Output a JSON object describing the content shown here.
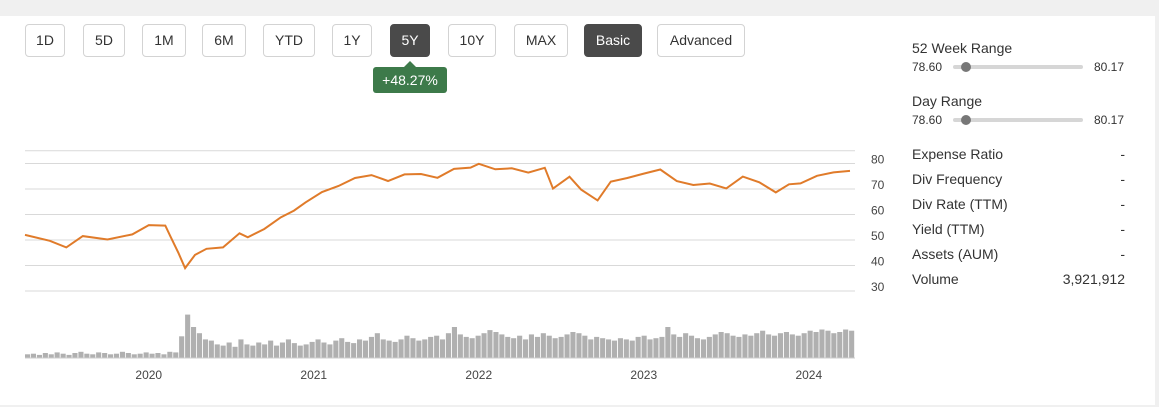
{
  "timeframe_buttons": [
    {
      "label": "1D",
      "active": false
    },
    {
      "label": "5D",
      "active": false
    },
    {
      "label": "1M",
      "active": false
    },
    {
      "label": "6M",
      "active": false
    },
    {
      "label": "YTD",
      "active": false
    },
    {
      "label": "1Y",
      "active": false
    },
    {
      "label": "5Y",
      "active": true
    },
    {
      "label": "10Y",
      "active": false
    },
    {
      "label": "MAX",
      "active": false
    }
  ],
  "mode_buttons": [
    {
      "label": "Basic",
      "active": true
    },
    {
      "label": "Advanced",
      "active": false
    }
  ],
  "change_badge": "+48.27%",
  "colors": {
    "price_line": "#e07b2a",
    "volume": "#b0b0b0",
    "active_button": "#4a4a4a",
    "badge": "#3d7a4a"
  },
  "chart_data": {
    "type": "line",
    "ylim": [
      30,
      85
    ],
    "y_ticks": [
      "80",
      "70",
      "60",
      "50",
      "40",
      "30"
    ],
    "x_ticks": [
      "2020",
      "2021",
      "2022",
      "2023",
      "2024"
    ],
    "series": [
      {
        "values": [
          [
            2019.25,
            52
          ],
          [
            2019.4,
            49
          ],
          [
            2019.5,
            48
          ],
          [
            2019.6,
            51
          ],
          [
            2019.75,
            50
          ],
          [
            2019.9,
            53
          ],
          [
            2020.0,
            55
          ],
          [
            2020.1,
            56
          ],
          [
            2020.13,
            52
          ],
          [
            2020.18,
            44
          ],
          [
            2020.22,
            39
          ],
          [
            2020.28,
            44
          ],
          [
            2020.35,
            46
          ],
          [
            2020.45,
            48
          ],
          [
            2020.55,
            52
          ],
          [
            2020.6,
            51
          ],
          [
            2020.7,
            55
          ],
          [
            2020.8,
            58
          ],
          [
            2020.88,
            62
          ],
          [
            2020.95,
            65
          ],
          [
            2021.05,
            68
          ],
          [
            2021.15,
            72
          ],
          [
            2021.25,
            74
          ],
          [
            2021.35,
            75
          ],
          [
            2021.45,
            74
          ],
          [
            2021.55,
            75
          ],
          [
            2021.65,
            76
          ],
          [
            2021.75,
            75
          ],
          [
            2021.85,
            77
          ],
          [
            2021.95,
            79
          ],
          [
            2022.0,
            80
          ],
          [
            2022.1,
            77
          ],
          [
            2022.2,
            79
          ],
          [
            2022.3,
            76
          ],
          [
            2022.4,
            78
          ],
          [
            2022.45,
            71
          ],
          [
            2022.55,
            74
          ],
          [
            2022.62,
            70
          ],
          [
            2022.72,
            66
          ],
          [
            2022.8,
            72
          ],
          [
            2022.9,
            75
          ],
          [
            2023.0,
            76
          ],
          [
            2023.1,
            77
          ],
          [
            2023.2,
            74
          ],
          [
            2023.3,
            71
          ],
          [
            2023.4,
            72
          ],
          [
            2023.5,
            71
          ],
          [
            2023.6,
            74
          ],
          [
            2023.7,
            73
          ],
          [
            2023.8,
            69
          ],
          [
            2023.88,
            71
          ],
          [
            2023.95,
            73
          ],
          [
            2024.05,
            75
          ],
          [
            2024.15,
            76
          ],
          [
            2024.25,
            78
          ]
        ]
      }
    ],
    "volume": [
      0.06,
      0.07,
      0.05,
      0.08,
      0.06,
      0.09,
      0.07,
      0.05,
      0.08,
      0.1,
      0.07,
      0.06,
      0.09,
      0.08,
      0.06,
      0.07,
      0.1,
      0.08,
      0.06,
      0.07,
      0.09,
      0.07,
      0.08,
      0.06,
      0.1,
      0.09,
      0.35,
      0.7,
      0.5,
      0.4,
      0.3,
      0.28,
      0.22,
      0.2,
      0.25,
      0.18,
      0.3,
      0.22,
      0.2,
      0.25,
      0.22,
      0.28,
      0.2,
      0.25,
      0.3,
      0.24,
      0.2,
      0.22,
      0.26,
      0.3,
      0.25,
      0.22,
      0.28,
      0.32,
      0.26,
      0.24,
      0.3,
      0.28,
      0.34,
      0.4,
      0.3,
      0.28,
      0.26,
      0.3,
      0.36,
      0.32,
      0.28,
      0.3,
      0.34,
      0.36,
      0.3,
      0.4,
      0.5,
      0.38,
      0.34,
      0.32,
      0.36,
      0.4,
      0.45,
      0.42,
      0.38,
      0.34,
      0.32,
      0.36,
      0.3,
      0.38,
      0.34,
      0.4,
      0.36,
      0.32,
      0.34,
      0.38,
      0.42,
      0.4,
      0.36,
      0.3,
      0.34,
      0.32,
      0.3,
      0.28,
      0.32,
      0.3,
      0.28,
      0.34,
      0.36,
      0.3,
      0.32,
      0.34,
      0.5,
      0.38,
      0.34,
      0.4,
      0.36,
      0.32,
      0.3,
      0.34,
      0.38,
      0.42,
      0.4,
      0.36,
      0.34,
      0.38,
      0.36,
      0.4,
      0.44,
      0.38,
      0.36,
      0.4,
      0.42,
      0.38,
      0.36,
      0.4,
      0.44,
      0.42,
      0.46,
      0.44,
      0.4,
      0.42,
      0.46,
      0.44
    ]
  },
  "week52_range": {
    "label": "52 Week Range",
    "low": "78.60",
    "high": "80.17",
    "position": 0.1
  },
  "day_range": {
    "label": "Day Range",
    "low": "78.60",
    "high": "80.17",
    "position": 0.1
  },
  "stats": [
    {
      "label": "Expense Ratio",
      "value": "-"
    },
    {
      "label": "Div Frequency",
      "value": "-"
    },
    {
      "label": "Div Rate (TTM)",
      "value": "-"
    },
    {
      "label": "Yield (TTM)",
      "value": "-"
    },
    {
      "label": "Assets (AUM)",
      "value": "-"
    },
    {
      "label": "Volume",
      "value": "3,921,912"
    }
  ]
}
